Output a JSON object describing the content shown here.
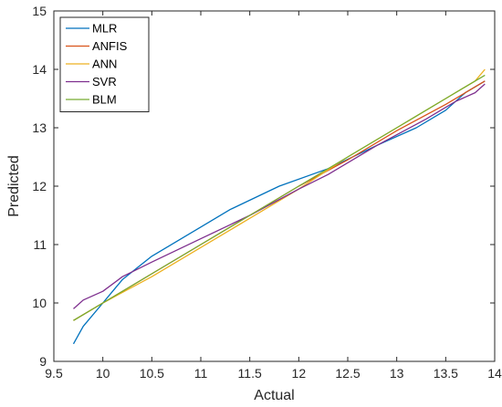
{
  "chart_data": {
    "type": "line",
    "title": "",
    "xlabel": "Actual",
    "ylabel": "Predicted",
    "xlim": [
      9.5,
      14
    ],
    "ylim": [
      9,
      15
    ],
    "xticks": [
      9.5,
      10,
      10.5,
      11,
      11.5,
      12,
      12.5,
      13,
      13.5,
      14
    ],
    "xtick_labels": [
      "9.5",
      "10",
      "10.5",
      "11",
      "11.5",
      "12",
      "12.5",
      "13",
      "13.5",
      "14"
    ],
    "yticks": [
      9,
      10,
      11,
      12,
      13,
      14,
      15
    ],
    "ytick_labels": [
      "9",
      "10",
      "11",
      "12",
      "13",
      "14",
      "15"
    ],
    "grid": false,
    "legend_position": "top-left",
    "series": [
      {
        "name": "MLR",
        "color": "#0072BD",
        "x": [
          9.7,
          9.8,
          10.0,
          10.2,
          10.5,
          11.0,
          11.3,
          11.8,
          12.3,
          12.8,
          13.2,
          13.5,
          13.7,
          13.9
        ],
        "y": [
          9.3,
          9.6,
          10.0,
          10.4,
          10.8,
          11.3,
          11.6,
          12.0,
          12.3,
          12.7,
          13.0,
          13.3,
          13.6,
          13.8
        ]
      },
      {
        "name": "ANFIS",
        "color": "#D95319",
        "x": [
          9.7,
          10.0,
          10.5,
          11.0,
          11.5,
          12.0,
          12.5,
          13.0,
          13.5,
          13.9
        ],
        "y": [
          9.7,
          10.0,
          10.5,
          11.0,
          11.5,
          12.0,
          12.45,
          12.95,
          13.4,
          13.8
        ]
      },
      {
        "name": "ANN",
        "color": "#EDB120",
        "x": [
          9.7,
          10.0,
          10.5,
          11.0,
          11.5,
          12.0,
          12.5,
          13.0,
          13.5,
          13.8,
          13.9
        ],
        "y": [
          9.7,
          10.0,
          10.45,
          10.95,
          11.45,
          11.95,
          12.5,
          13.0,
          13.5,
          13.8,
          14.0
        ]
      },
      {
        "name": "SVR",
        "color": "#7E2F8E",
        "x": [
          9.7,
          9.8,
          10.0,
          10.2,
          10.5,
          11.0,
          11.5,
          12.0,
          12.3,
          12.8,
          13.3,
          13.6,
          13.8,
          13.9
        ],
        "y": [
          9.9,
          10.05,
          10.2,
          10.45,
          10.7,
          11.1,
          11.5,
          11.95,
          12.2,
          12.7,
          13.15,
          13.45,
          13.6,
          13.75
        ]
      },
      {
        "name": "BLM",
        "color": "#77AC30",
        "x": [
          9.7,
          10.0,
          10.5,
          11.0,
          11.5,
          12.0,
          12.5,
          13.0,
          13.5,
          13.9
        ],
        "y": [
          9.7,
          10.0,
          10.5,
          11.0,
          11.5,
          12.0,
          12.5,
          13.0,
          13.5,
          13.9
        ]
      }
    ]
  }
}
